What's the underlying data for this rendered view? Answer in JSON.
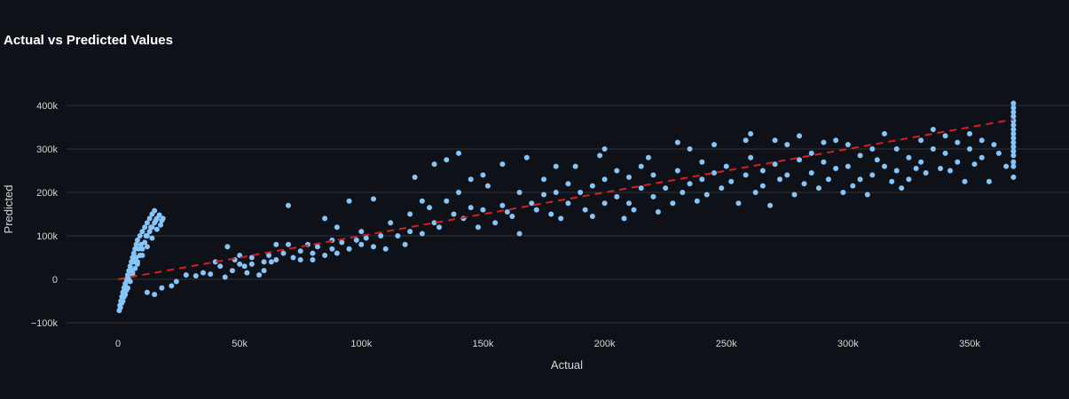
{
  "chart_data": {
    "type": "scatter",
    "title": "Actual vs Predicted Values",
    "xlabel": "Actual",
    "ylabel": "Predicted",
    "xlim": [
      -20000,
      390000
    ],
    "ylim": [
      -105000,
      425000
    ],
    "x_ticks": [
      0,
      50000,
      100000,
      150000,
      200000,
      250000,
      300000,
      350000
    ],
    "x_tick_labels": [
      "0",
      "50k",
      "100k",
      "150k",
      "200k",
      "250k",
      "300k",
      "350k"
    ],
    "y_ticks": [
      -100000,
      0,
      100000,
      200000,
      300000,
      400000
    ],
    "y_tick_labels": [
      "−100k",
      "0",
      "100k",
      "200k",
      "300k",
      "400k"
    ],
    "grid": "horizontal",
    "colors": {
      "points": "#86c5fa",
      "reference_line": "#d62020",
      "background": "#0e1117"
    },
    "series": [
      {
        "values_xy": [
          [
            500,
            -72000
          ],
          [
            800,
            -60000
          ],
          [
            1200,
            -50000
          ],
          [
            1600,
            -40000
          ],
          [
            2000,
            -30000
          ],
          [
            2500,
            -20000
          ],
          [
            3000,
            -10000
          ],
          [
            3500,
            0
          ],
          [
            4000,
            10000
          ],
          [
            4500,
            20000
          ],
          [
            5000,
            30000
          ],
          [
            5500,
            40000
          ],
          [
            6000,
            50000
          ],
          [
            6500,
            60000
          ],
          [
            7000,
            70000
          ],
          [
            7500,
            80000
          ],
          [
            8000,
            90000
          ],
          [
            9000,
            100000
          ],
          [
            10000,
            110000
          ],
          [
            11000,
            120000
          ],
          [
            12000,
            130000
          ],
          [
            13000,
            140000
          ],
          [
            14000,
            150000
          ],
          [
            15000,
            158000
          ],
          [
            2000,
            -50000
          ],
          [
            3000,
            -35000
          ],
          [
            4000,
            -20000
          ],
          [
            5000,
            -5000
          ],
          [
            6000,
            10000
          ],
          [
            7000,
            25000
          ],
          [
            8000,
            40000
          ],
          [
            9000,
            55000
          ],
          [
            10000,
            70000
          ],
          [
            11000,
            85000
          ],
          [
            12000,
            100000
          ],
          [
            13000,
            110000
          ],
          [
            14000,
            120000
          ],
          [
            15000,
            130000
          ],
          [
            16000,
            140000
          ],
          [
            17000,
            148000
          ],
          [
            18000,
            135000
          ],
          [
            16000,
            115000
          ],
          [
            14000,
            95000
          ],
          [
            12000,
            75000
          ],
          [
            10000,
            55000
          ],
          [
            8000,
            35000
          ],
          [
            6000,
            15000
          ],
          [
            4000,
            0
          ],
          [
            3000,
            -15000
          ],
          [
            1500,
            -55000
          ],
          [
            1000,
            -65000
          ],
          [
            2500,
            -40000
          ],
          [
            5500,
            20000
          ],
          [
            7500,
            50000
          ],
          [
            9500,
            80000
          ],
          [
            11500,
            100000
          ],
          [
            13500,
            120000
          ],
          [
            15500,
            135000
          ],
          [
            17500,
            125000
          ],
          [
            18500,
            140000
          ],
          [
            8500,
            70000
          ],
          [
            6500,
            40000
          ],
          [
            4500,
            5000
          ],
          [
            3500,
            -25000
          ],
          [
            12000,
            -30000
          ],
          [
            15000,
            -35000
          ],
          [
            18000,
            -20000
          ],
          [
            22000,
            -15000
          ],
          [
            24000,
            -5000
          ],
          [
            28000,
            10000
          ],
          [
            32000,
            8000
          ],
          [
            35000,
            15000
          ],
          [
            38000,
            12000
          ],
          [
            40000,
            40000
          ],
          [
            42000,
            30000
          ],
          [
            44000,
            5000
          ],
          [
            45000,
            75000
          ],
          [
            47000,
            20000
          ],
          [
            48000,
            45000
          ],
          [
            50000,
            55000
          ],
          [
            50000,
            35000
          ],
          [
            52000,
            30000
          ],
          [
            53000,
            15000
          ],
          [
            55000,
            50000
          ],
          [
            55000,
            35000
          ],
          [
            58000,
            10000
          ],
          [
            60000,
            40000
          ],
          [
            60000,
            20000
          ],
          [
            62000,
            55000
          ],
          [
            63000,
            40000
          ],
          [
            65000,
            80000
          ],
          [
            65000,
            45000
          ],
          [
            68000,
            60000
          ],
          [
            70000,
            80000
          ],
          [
            70000,
            170000
          ],
          [
            72000,
            50000
          ],
          [
            75000,
            65000
          ],
          [
            75000,
            45000
          ],
          [
            78000,
            80000
          ],
          [
            80000,
            60000
          ],
          [
            80000,
            45000
          ],
          [
            82000,
            75000
          ],
          [
            85000,
            140000
          ],
          [
            85000,
            55000
          ],
          [
            88000,
            90000
          ],
          [
            88000,
            70000
          ],
          [
            90000,
            120000
          ],
          [
            90000,
            60000
          ],
          [
            92000,
            85000
          ],
          [
            95000,
            180000
          ],
          [
            95000,
            70000
          ],
          [
            98000,
            90000
          ],
          [
            100000,
            110000
          ],
          [
            100000,
            80000
          ],
          [
            102000,
            95000
          ],
          [
            105000,
            185000
          ],
          [
            105000,
            75000
          ],
          [
            108000,
            100000
          ],
          [
            110000,
            70000
          ],
          [
            112000,
            130000
          ],
          [
            115000,
            100000
          ],
          [
            118000,
            80000
          ],
          [
            120000,
            150000
          ],
          [
            120000,
            110000
          ],
          [
            122000,
            235000
          ],
          [
            125000,
            180000
          ],
          [
            125000,
            105000
          ],
          [
            128000,
            165000
          ],
          [
            130000,
            265000
          ],
          [
            130000,
            130000
          ],
          [
            132000,
            120000
          ],
          [
            135000,
            275000
          ],
          [
            135000,
            180000
          ],
          [
            138000,
            150000
          ],
          [
            140000,
            290000
          ],
          [
            140000,
            200000
          ],
          [
            142000,
            140000
          ],
          [
            145000,
            230000
          ],
          [
            145000,
            165000
          ],
          [
            148000,
            120000
          ],
          [
            150000,
            160000
          ],
          [
            150000,
            240000
          ],
          [
            152000,
            215000
          ],
          [
            155000,
            130000
          ],
          [
            158000,
            265000
          ],
          [
            158000,
            170000
          ],
          [
            160000,
            155000
          ],
          [
            162000,
            145000
          ],
          [
            165000,
            200000
          ],
          [
            165000,
            105000
          ],
          [
            168000,
            280000
          ],
          [
            170000,
            175000
          ],
          [
            172000,
            160000
          ],
          [
            175000,
            195000
          ],
          [
            175000,
            230000
          ],
          [
            178000,
            150000
          ],
          [
            180000,
            260000
          ],
          [
            180000,
            200000
          ],
          [
            182000,
            140000
          ],
          [
            185000,
            220000
          ],
          [
            185000,
            175000
          ],
          [
            188000,
            260000
          ],
          [
            190000,
            200000
          ],
          [
            192000,
            160000
          ],
          [
            195000,
            215000
          ],
          [
            195000,
            145000
          ],
          [
            198000,
            285000
          ],
          [
            200000,
            300000
          ],
          [
            200000,
            230000
          ],
          [
            200000,
            175000
          ],
          [
            205000,
            250000
          ],
          [
            205000,
            190000
          ],
          [
            208000,
            140000
          ],
          [
            210000,
            235000
          ],
          [
            210000,
            175000
          ],
          [
            212000,
            160000
          ],
          [
            215000,
            260000
          ],
          [
            215000,
            210000
          ],
          [
            218000,
            280000
          ],
          [
            220000,
            240000
          ],
          [
            220000,
            190000
          ],
          [
            222000,
            155000
          ],
          [
            225000,
            210000
          ],
          [
            228000,
            175000
          ],
          [
            230000,
            315000
          ],
          [
            230000,
            250000
          ],
          [
            232000,
            200000
          ],
          [
            235000,
            300000
          ],
          [
            235000,
            220000
          ],
          [
            238000,
            180000
          ],
          [
            240000,
            270000
          ],
          [
            240000,
            230000
          ],
          [
            242000,
            195000
          ],
          [
            245000,
            310000
          ],
          [
            245000,
            245000
          ],
          [
            248000,
            210000
          ],
          [
            250000,
            260000
          ],
          [
            252000,
            225000
          ],
          [
            255000,
            175000
          ],
          [
            258000,
            320000
          ],
          [
            258000,
            240000
          ],
          [
            260000,
            335000
          ],
          [
            260000,
            280000
          ],
          [
            262000,
            200000
          ],
          [
            265000,
            250000
          ],
          [
            265000,
            215000
          ],
          [
            268000,
            170000
          ],
          [
            270000,
            320000
          ],
          [
            270000,
            265000
          ],
          [
            272000,
            230000
          ],
          [
            275000,
            310000
          ],
          [
            275000,
            240000
          ],
          [
            278000,
            195000
          ],
          [
            280000,
            330000
          ],
          [
            280000,
            275000
          ],
          [
            282000,
            220000
          ],
          [
            285000,
            290000
          ],
          [
            285000,
            245000
          ],
          [
            288000,
            210000
          ],
          [
            290000,
            315000
          ],
          [
            290000,
            270000
          ],
          [
            292000,
            230000
          ],
          [
            295000,
            320000
          ],
          [
            295000,
            255000
          ],
          [
            298000,
            200000
          ],
          [
            300000,
            310000
          ],
          [
            300000,
            260000
          ],
          [
            302000,
            215000
          ],
          [
            305000,
            285000
          ],
          [
            305000,
            230000
          ],
          [
            308000,
            195000
          ],
          [
            310000,
            300000
          ],
          [
            310000,
            240000
          ],
          [
            312000,
            275000
          ],
          [
            315000,
            335000
          ],
          [
            315000,
            260000
          ],
          [
            318000,
            225000
          ],
          [
            320000,
            300000
          ],
          [
            320000,
            250000
          ],
          [
            322000,
            210000
          ],
          [
            325000,
            280000
          ],
          [
            325000,
            230000
          ],
          [
            328000,
            255000
          ],
          [
            330000,
            320000
          ],
          [
            330000,
            270000
          ],
          [
            332000,
            245000
          ],
          [
            335000,
            345000
          ],
          [
            335000,
            300000
          ],
          [
            338000,
            255000
          ],
          [
            340000,
            330000
          ],
          [
            340000,
            290000
          ],
          [
            342000,
            250000
          ],
          [
            345000,
            315000
          ],
          [
            345000,
            270000
          ],
          [
            348000,
            225000
          ],
          [
            350000,
            335000
          ],
          [
            350000,
            300000
          ],
          [
            352000,
            265000
          ],
          [
            355000,
            320000
          ],
          [
            355000,
            280000
          ],
          [
            358000,
            225000
          ],
          [
            360000,
            310000
          ],
          [
            362000,
            290000
          ],
          [
            365000,
            260000
          ],
          [
            368000,
            405000
          ],
          [
            368000,
            395000
          ],
          [
            368000,
            385000
          ],
          [
            368000,
            375000
          ],
          [
            368000,
            365000
          ],
          [
            368000,
            355000
          ],
          [
            368000,
            345000
          ],
          [
            368000,
            335000
          ],
          [
            368000,
            325000
          ],
          [
            368000,
            315000
          ],
          [
            368000,
            305000
          ],
          [
            368000,
            295000
          ],
          [
            368000,
            285000
          ],
          [
            368000,
            270000
          ],
          [
            368000,
            260000
          ],
          [
            368000,
            235000
          ]
        ]
      }
    ],
    "reference_line": {
      "style": "dashed",
      "points": [
        [
          0,
          0
        ],
        [
          368000,
          368000
        ]
      ]
    }
  }
}
